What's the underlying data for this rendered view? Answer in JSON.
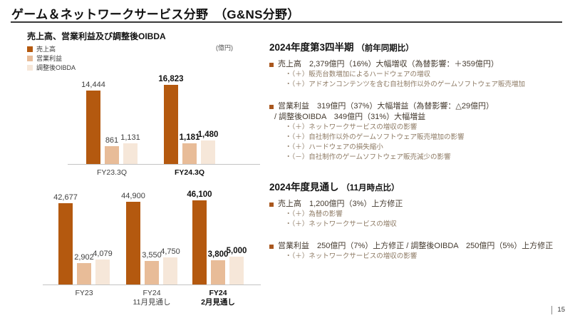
{
  "page": {
    "title": "ゲーム＆ネットワークサービス分野　（G&NS分野）",
    "page_number": "15"
  },
  "chart_section": {
    "title": "売上高、営業利益及び調整後OIBDA",
    "unit": "(億円)",
    "legend": [
      {
        "label": "売上高",
        "color": "#B4590F"
      },
      {
        "label": "営業利益",
        "color": "#E8BC98"
      },
      {
        "label": "調整後OIBDA",
        "color": "#F6E7D9"
      }
    ]
  },
  "chart_data": [
    {
      "type": "bar",
      "unit": "億円",
      "grid": false,
      "legend_position": "top-left",
      "value_labels": true,
      "categories": [
        "FY23.3Q",
        "FY24.3Q"
      ],
      "emphasized_categories": [
        false,
        true
      ],
      "series": [
        {
          "name": "売上高",
          "values": [
            14444,
            16823
          ]
        },
        {
          "name": "営業利益",
          "values": [
            861,
            1181
          ]
        },
        {
          "name": "調整後OIBDA",
          "values": [
            1131,
            1480
          ]
        }
      ]
    },
    {
      "type": "bar",
      "unit": "億円",
      "grid": false,
      "legend_position": "top-left",
      "value_labels": true,
      "categories": [
        "FY23",
        "FY24\n11月見通し",
        "FY24\n2月見通し"
      ],
      "emphasized_categories": [
        false,
        false,
        true
      ],
      "series": [
        {
          "name": "売上高",
          "values": [
            42677,
            44900,
            46100
          ]
        },
        {
          "name": "営業利益",
          "values": [
            2902,
            3550,
            3800
          ]
        },
        {
          "name": "調整後OIBDA",
          "values": [
            4079,
            4750,
            5000
          ]
        }
      ]
    }
  ],
  "right_panel": {
    "sections": [
      {
        "heading": "2024年度第3四半期",
        "heading_note": "（前年同期比）",
        "bullets": [
          {
            "lines": [
              "売上高　2,379億円（16%）大幅増収（為替影響：＋359億円）"
            ],
            "subs": [
              "・（＋）販売台数増加によるハードウェアの増収",
              "・（＋）アドオンコンテンツを含む自社制作以外のゲームソフトウェア販売増加"
            ]
          },
          {
            "lines": [
              "営業利益　319億円（37%）大幅増益（為替影響：△29億円）",
              "/ 調整後OIBDA　349億円（31%）大幅増益"
            ],
            "subs": [
              "・（＋）ネットワークサービスの増収の影響",
              "・（＋）自社制作以外のゲームソフトウェア販売増加の影響",
              "・（＋）ハードウェアの損失縮小",
              "・（－）自社制作のゲームソフトウェア販売減少の影響"
            ]
          }
        ]
      },
      {
        "heading": "2024年度見通し",
        "heading_note": "（11月時点比）",
        "bullets": [
          {
            "lines": [
              "売上高　1,200億円（3%）上方修正"
            ],
            "subs": [
              "・（＋）為替の影響",
              "・（＋）ネットワークサービスの増収"
            ]
          },
          {
            "lines": [
              "営業利益　250億円（7%）上方修正 / 調整後OIBDA　250億円（5%）上方修正"
            ],
            "subs": [
              "・（＋）ネットワークサービスの増収の影響"
            ]
          }
        ]
      }
    ]
  }
}
